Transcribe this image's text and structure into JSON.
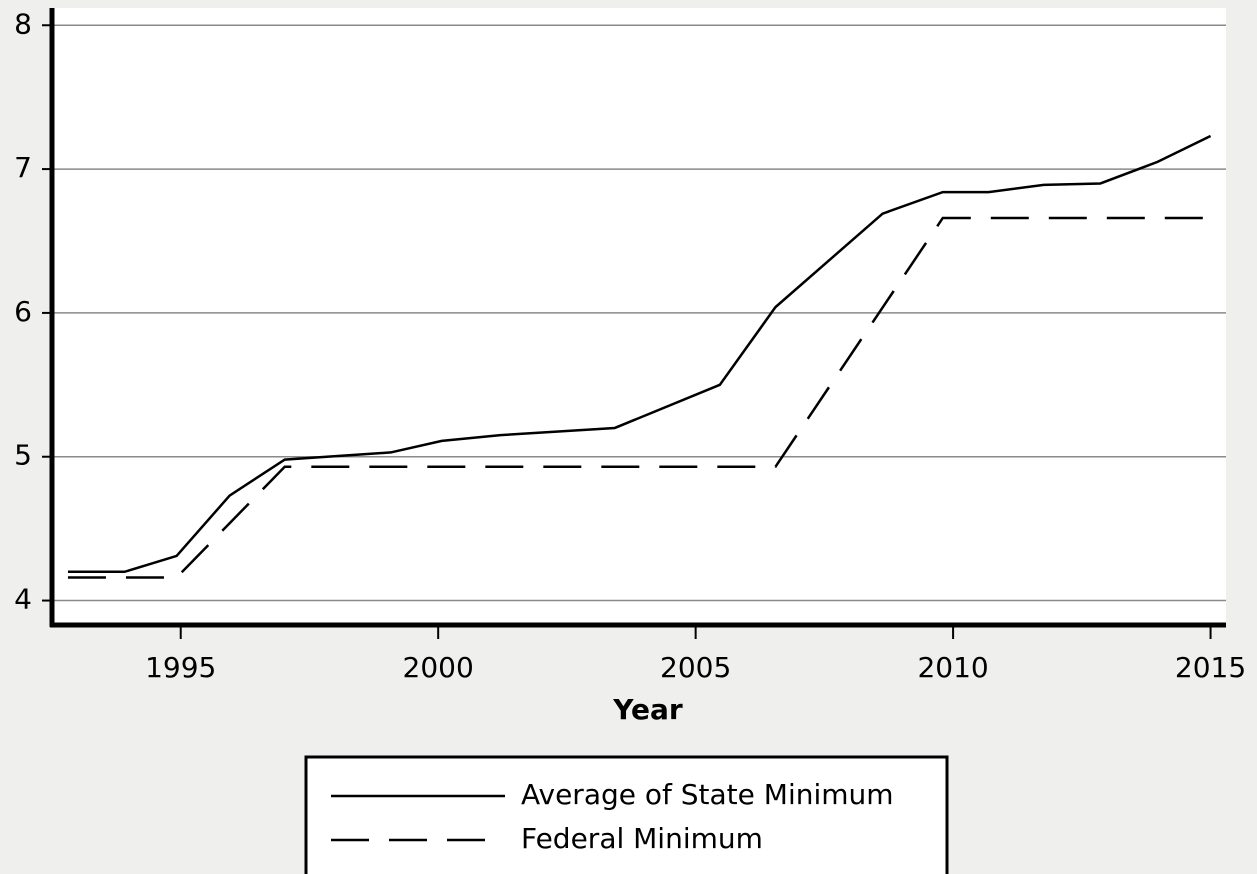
{
  "chart_data": {
    "type": "line",
    "x_label": "Year",
    "xlim": [
      1992.5,
      2015.3
    ],
    "xticks": [
      1995,
      2000,
      2005,
      2010,
      2015
    ],
    "ylim": [
      3.83,
      8.12
    ],
    "yticks": [
      4,
      5,
      6,
      7,
      8
    ],
    "grid": true,
    "legend": "bottom",
    "series": [
      {
        "name": "Average of State Minimum",
        "color": "#000000",
        "dash": "solid",
        "x": [
          1992.81,
          1993.91,
          1994.92,
          1995.95,
          1997.02,
          1999.08,
          2000.07,
          2001.21,
          2003.43,
          2005.47,
          2006.55,
          2008.63,
          2009.8,
          2010.69,
          2011.76,
          2012.86,
          2013.97,
          2015
        ],
        "values": [
          4.2,
          4.2,
          4.31,
          4.73,
          4.98,
          5.03,
          5.11,
          5.15,
          5.2,
          5.5,
          6.04,
          6.69,
          6.84,
          6.84,
          6.89,
          6.9,
          7.05,
          7.23
        ]
      },
      {
        "name": "Federal Minimum",
        "color": "#000000",
        "dash": "dashed",
        "x": [
          1992.81,
          1994.92,
          1997.02,
          2006.55,
          2009.8,
          2015
        ],
        "values": [
          4.16,
          4.16,
          4.93,
          4.93,
          6.66,
          6.66
        ]
      }
    ]
  }
}
